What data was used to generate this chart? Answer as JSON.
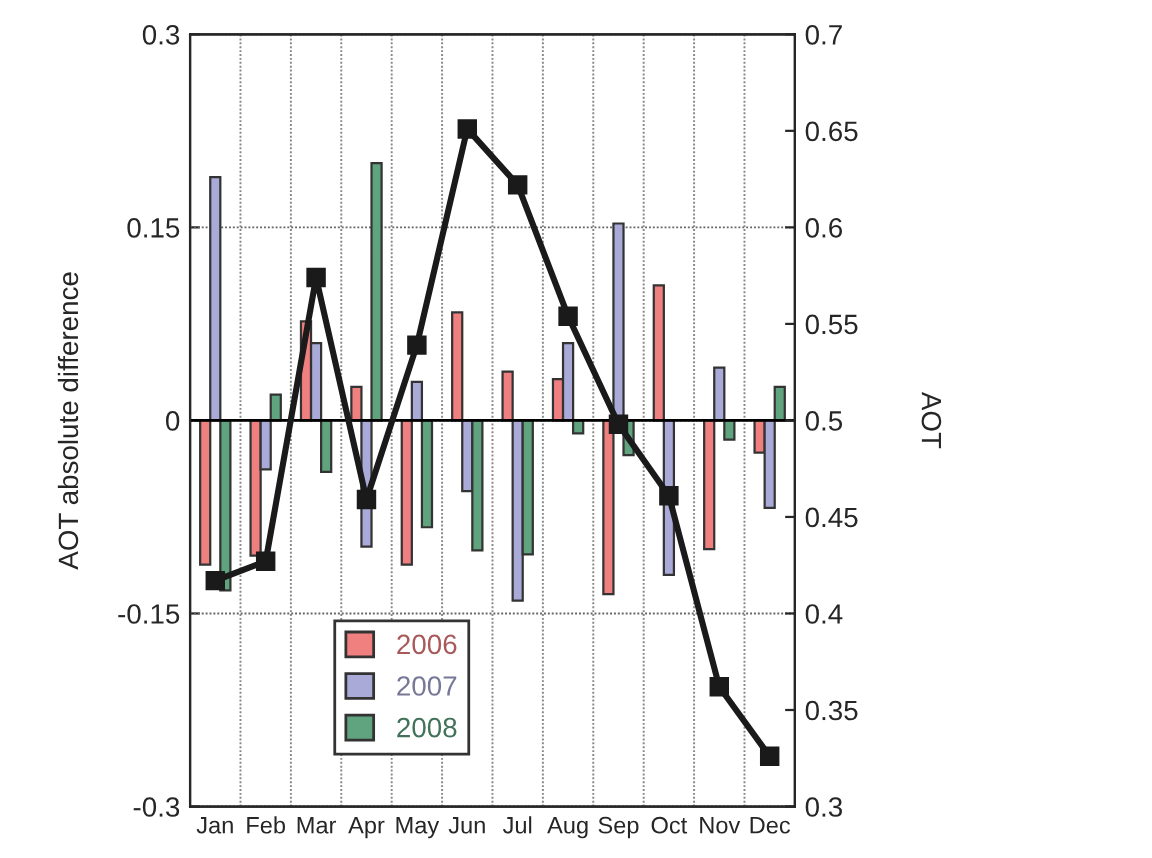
{
  "chart_data": {
    "type": "bar",
    "ylabel": "AOT absolute difference",
    "y2label": "AOT",
    "categories": [
      "Jan",
      "Feb",
      "Mar",
      "Apr",
      "May",
      "Jun",
      "Jul",
      "Aug",
      "Sep",
      "Oct",
      "Nov",
      "Dec"
    ],
    "series": [
      {
        "name": "2006",
        "color": "#f08080",
        "values": [
          -0.112,
          -0.105,
          0.077,
          0.026,
          -0.112,
          0.084,
          0.038,
          0.032,
          -0.135,
          0.105,
          -0.1,
          -0.025
        ]
      },
      {
        "name": "2007",
        "color": "#aaaad8",
        "values": [
          0.189,
          -0.038,
          0.06,
          -0.098,
          0.03,
          -0.055,
          -0.14,
          0.06,
          0.153,
          -0.12,
          0.041,
          -0.068
        ]
      },
      {
        "name": "2008",
        "color": "#5fa37f",
        "values": [
          -0.132,
          0.02,
          -0.04,
          0.2,
          -0.083,
          -0.101,
          -0.104,
          -0.01,
          -0.027,
          null,
          -0.015,
          0.026
        ]
      },
      {
        "type": "line",
        "axis": "y2",
        "color": "#1a1a1a",
        "marker": "square",
        "values": [
          0.417,
          0.427,
          0.574,
          0.459,
          0.539,
          0.651,
          0.622,
          0.554,
          0.498,
          0.461,
          0.362,
          0.326
        ]
      }
    ],
    "ylim": [
      -0.3,
      0.3
    ],
    "yticks": [
      -0.3,
      -0.15,
      0,
      0.15,
      0.3
    ],
    "y2lim": [
      0.3,
      0.7
    ],
    "y2ticks": [
      0.3,
      0.35,
      0.4,
      0.45,
      0.5,
      0.55,
      0.6,
      0.65,
      0.7
    ],
    "grid": true,
    "legend": "bottom"
  }
}
